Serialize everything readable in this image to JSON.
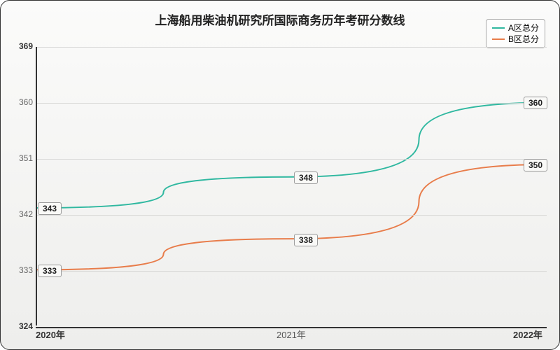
{
  "chart": {
    "type": "line",
    "title": "上海船用柴油机研究所国际商务历年考研分数线",
    "title_fontsize": 17,
    "background_gradient": [
      "#fbfbfa",
      "#eeeeec"
    ],
    "border_color": "#333333",
    "grid_color": "#d8d8d6",
    "axis_color": "#333333",
    "text_color": "#666666",
    "x": {
      "categories": [
        "2020年",
        "2021年",
        "2022年"
      ],
      "label_fontsize": 13
    },
    "y": {
      "min": 324,
      "max": 369,
      "tick_step": 9,
      "ticks": [
        324,
        333,
        342,
        351,
        360,
        369
      ],
      "label_fontsize": 12
    },
    "series": [
      {
        "name": "A区总分",
        "color": "#2fb8a0",
        "line_width": 2,
        "values": [
          343,
          348,
          360
        ]
      },
      {
        "name": "B区总分",
        "color": "#e87c4a",
        "line_width": 2,
        "values": [
          333,
          338,
          350
        ]
      }
    ],
    "legend": {
      "position": "top-right",
      "fontsize": 12,
      "border_color": "#aaaaaa"
    },
    "value_label": {
      "fontsize": 12,
      "background": "#f9f9f7",
      "border_color": "#999999"
    }
  }
}
